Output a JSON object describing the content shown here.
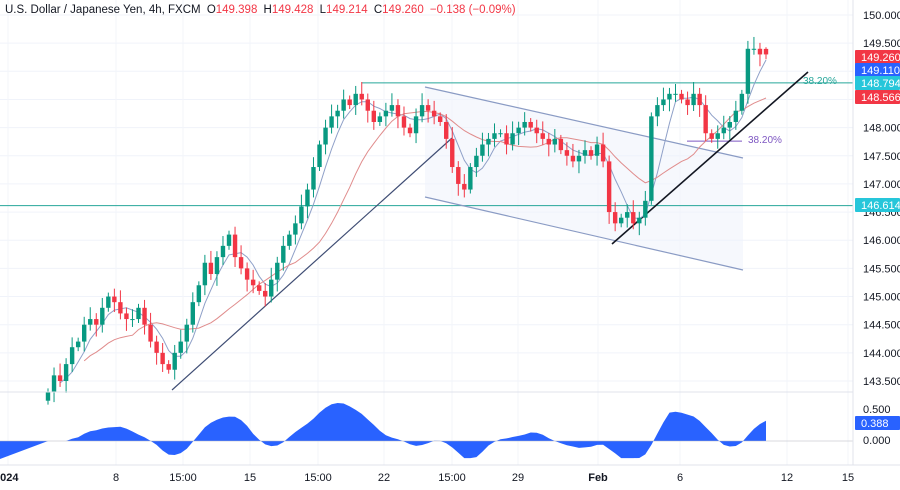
{
  "header": {
    "symbol": "U.S. Dollar / Japanese Yen, 4h, FXCM",
    "open_label": "O",
    "open": "149.398",
    "high_label": "H",
    "high": "149.428",
    "low_label": "L",
    "low": "149.214",
    "close_label": "C",
    "close": "149.260",
    "change": "−0.138 (−0.09%)"
  },
  "colors": {
    "up": "#089981",
    "down": "#f23645",
    "hline": "#26a69a",
    "channel": "#8a9bc4",
    "trend": "#1f2a44",
    "ma_fast": "#8fa0c8",
    "ma_slow": "#e08c8c",
    "osc": "#2962ff",
    "fib": "#7e57c2"
  },
  "price_scale": {
    "ticks": [
      "150.000",
      "149.500",
      "149.000",
      "148.500",
      "148.000",
      "147.500",
      "147.000",
      "146.500",
      "146.000",
      "145.500",
      "145.000",
      "144.500",
      "144.000",
      "143.500"
    ],
    "tags": [
      {
        "text": "149.260",
        "bg": "#f23645"
      },
      {
        "text": "149.110",
        "bg": "#2962ff"
      },
      {
        "text": "148.794",
        "bg": "#26c6da"
      },
      {
        "text": "148.566",
        "bg": "#f23645"
      },
      {
        "text": "146.614",
        "bg": "#26c6da"
      }
    ]
  },
  "osc_scale": {
    "ticks": [
      "0.500",
      "0.000"
    ],
    "tag": "0.388"
  },
  "time_axis": [
    "2024",
    "8",
    "15:00",
    "15",
    "15:00",
    "22",
    "15:00",
    "29",
    "Feb",
    "6",
    "12",
    "15"
  ],
  "annotations": {
    "fib_upper": "38.20%",
    "fib_lower": "38.20%"
  },
  "chart_data": {
    "type": "candlestick",
    "title": "U.S. Dollar / Japanese Yen, 4h, FXCM",
    "ylim": [
      143.25,
      150.15
    ],
    "horizontal_levels": [
      148.794,
      146.614
    ],
    "fib_levels": [
      {
        "label": "38.20%",
        "value": 148.794
      },
      {
        "label": "38.20%",
        "value": 147.76
      }
    ],
    "last": {
      "open": 149.398,
      "high": 149.428,
      "low": 149.214,
      "close": 149.26
    },
    "ma_values": {
      "fast": 149.11,
      "slow": 148.566
    },
    "oscillator": {
      "last": 0.388,
      "ticks": [
        0.5,
        0.0
      ]
    },
    "closes": [
      143.3,
      143.6,
      143.5,
      143.8,
      144.1,
      144.2,
      144.5,
      144.6,
      144.5,
      144.8,
      145.0,
      144.9,
      144.7,
      144.6,
      144.6,
      144.8,
      144.5,
      144.2,
      144.0,
      143.8,
      143.7,
      144.0,
      144.2,
      144.5,
      144.9,
      145.2,
      145.6,
      145.4,
      145.7,
      145.9,
      146.1,
      145.7,
      145.5,
      145.3,
      145.2,
      145.1,
      145.0,
      145.3,
      145.6,
      145.9,
      146.1,
      146.3,
      146.6,
      146.9,
      147.3,
      147.7,
      148.0,
      148.2,
      148.3,
      148.5,
      148.4,
      148.6,
      148.5,
      148.3,
      148.1,
      148.2,
      148.3,
      148.4,
      148.2,
      148.0,
      147.9,
      148.2,
      148.4,
      148.3,
      148.2,
      148.1,
      147.8,
      147.3,
      147.0,
      146.9,
      147.3,
      147.5,
      147.7,
      147.8,
      147.9,
      147.9,
      147.7,
      147.9,
      148.0,
      148.1,
      148.0,
      147.9,
      147.8,
      147.7,
      147.8,
      147.6,
      147.5,
      147.4,
      147.5,
      147.6,
      147.5,
      147.7,
      147.4,
      146.5,
      146.3,
      146.4,
      146.5,
      146.3,
      146.4,
      146.7,
      148.2,
      148.4,
      148.5,
      148.6,
      148.6,
      148.5,
      148.4,
      148.6,
      148.4,
      147.9,
      147.8,
      147.9,
      148.0,
      148.1,
      148.3,
      148.6,
      149.4,
      149.4,
      149.3,
      149.3
    ]
  }
}
